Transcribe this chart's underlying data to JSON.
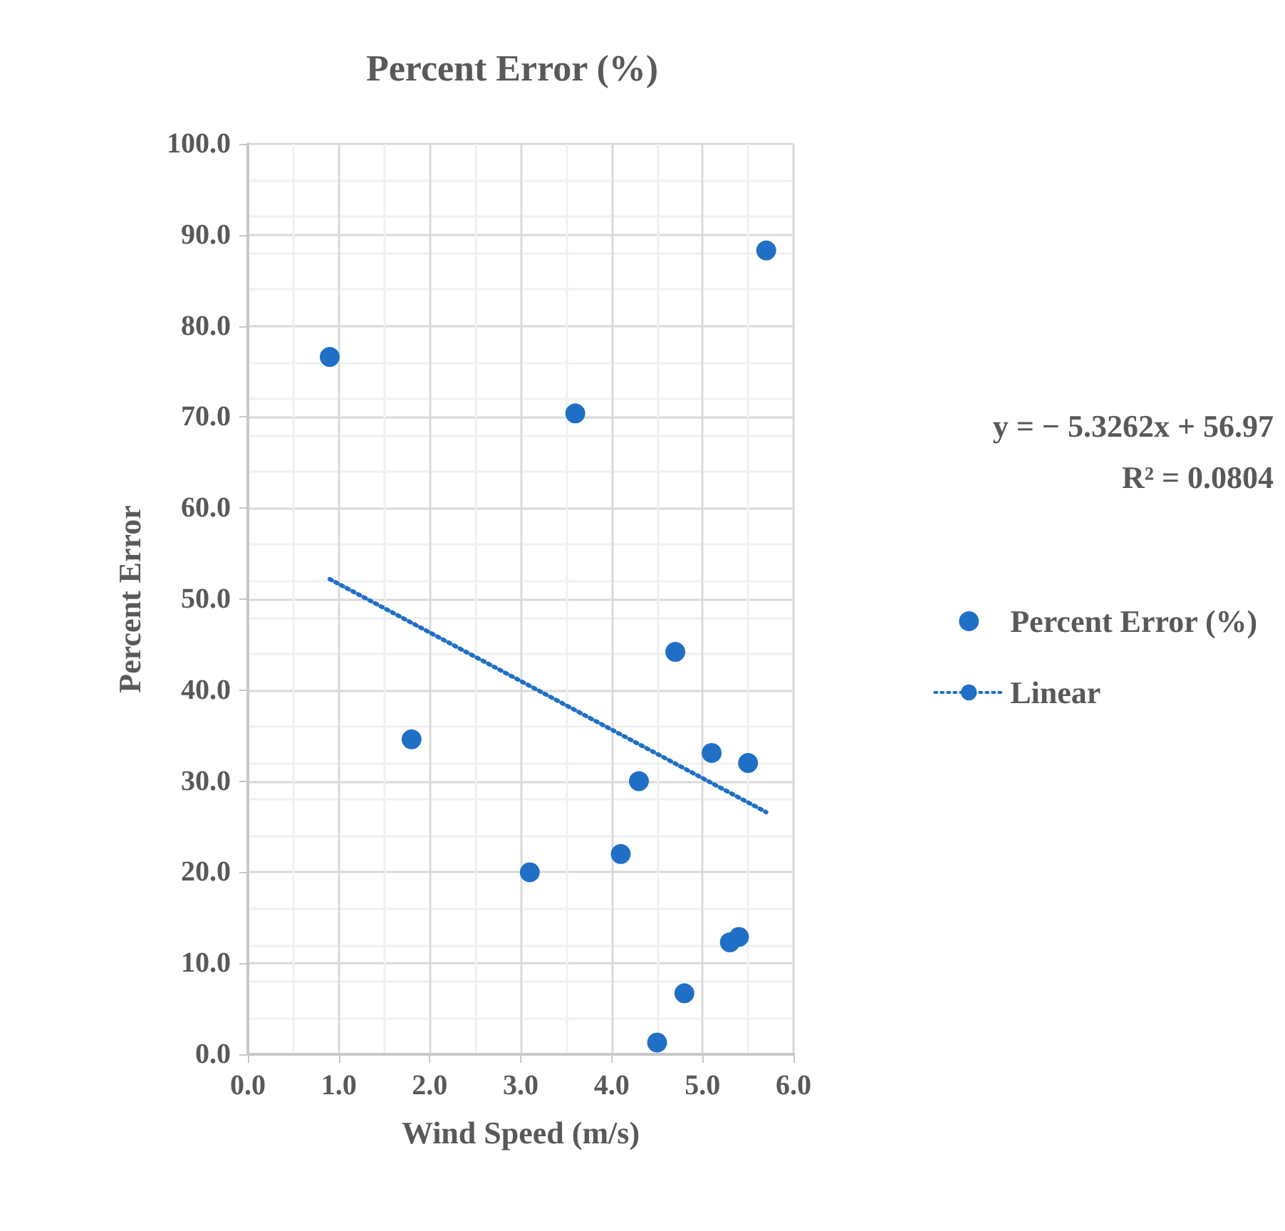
{
  "chart_data": {
    "type": "scatter",
    "title": "Percent Error (%)",
    "xlabel": "Wind Speed (m/s)",
    "ylabel": "Percent Error",
    "annotations": [
      "y = − 5.3262x + 56.97",
      "R² = 0.0804"
    ],
    "x": [
      0.9,
      1.8,
      3.1,
      3.6,
      4.1,
      4.3,
      4.5,
      4.7,
      4.8,
      5.1,
      5.3,
      5.4,
      5.5,
      5.7
    ],
    "series": [
      {
        "name": "Percent Error (%)",
        "color": "#1f6fc6",
        "marker": "circle",
        "values": [
          76.6,
          34.6,
          20.0,
          70.4,
          22.0,
          30.0,
          1.3,
          44.2,
          6.7,
          33.1,
          12.3,
          12.9,
          32.0,
          88.3
        ]
      },
      {
        "name": "Linear",
        "type": "line",
        "color": "#1f6fc6",
        "marker": "none",
        "line_style": "dotted",
        "x": [
          0.9,
          5.7
        ],
        "values": [
          52.2,
          26.6
        ]
      }
    ],
    "xlim": [
      0,
      6
    ],
    "ylim": [
      0,
      100
    ],
    "xticks": [
      {
        "value": 0,
        "label": "0.0"
      },
      {
        "value": 1,
        "label": "1.0"
      },
      {
        "value": 2,
        "label": "2.0"
      },
      {
        "value": 3,
        "label": "3.0"
      },
      {
        "value": 4,
        "label": "4.0"
      },
      {
        "value": 5,
        "label": "5.0"
      },
      {
        "value": 6,
        "label": "6.0"
      }
    ],
    "yticks": [
      {
        "value": 0,
        "label": "0.0"
      },
      {
        "value": 10,
        "label": "10.0"
      },
      {
        "value": 20,
        "label": "20.0"
      },
      {
        "value": 30,
        "label": "30.0"
      },
      {
        "value": 40,
        "label": "40.0"
      },
      {
        "value": 50,
        "label": "50.0"
      },
      {
        "value": 60,
        "label": "60.0"
      },
      {
        "value": 70,
        "label": "70.0"
      },
      {
        "value": 80,
        "label": "80.0"
      },
      {
        "value": 90,
        "label": "90.0"
      },
      {
        "value": 100,
        "label": "100.0"
      }
    ],
    "grid": true,
    "legend": "right"
  }
}
